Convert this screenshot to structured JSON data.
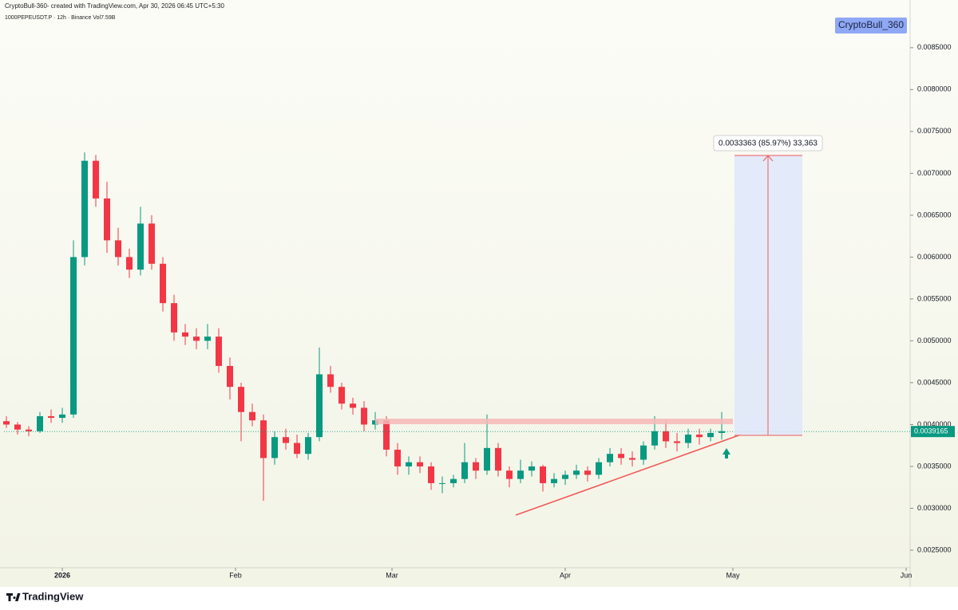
{
  "chart_data": {
    "type": "candlestick",
    "credit": "CryptoBull-360- created with TradingView.com, Apr 30, 2026 06:45 UTC+5:30",
    "title": "1000PEPEUSDT.P · 12h · Binance  Vol7.59B",
    "badge": "CryptoBull_360",
    "measure_label": "0.0033363 (85.97%) 33,363",
    "last_price": 0.0039165,
    "logo": "TradingView",
    "up_color": "#089981",
    "down_color": "#f23645",
    "x": [
      -10,
      -8,
      -6,
      -4,
      -2,
      0,
      2,
      4,
      6,
      8,
      10,
      12,
      14,
      16,
      18,
      20,
      22,
      24,
      26,
      28,
      30,
      32,
      34,
      36,
      38,
      40,
      42,
      44,
      46,
      48,
      50,
      52,
      54,
      56,
      58,
      60,
      62,
      64,
      66,
      68,
      70,
      72,
      74,
      76,
      78,
      80,
      82,
      84,
      86,
      88,
      90,
      92,
      94,
      96,
      98,
      100,
      102,
      104,
      106,
      108,
      110,
      112,
      114,
      116,
      118
    ],
    "open": [
      0.00404,
      0.004,
      0.00394,
      0.00392,
      0.0041,
      0.00408,
      0.00412,
      0.006,
      0.00715,
      0.0067,
      0.0062,
      0.006,
      0.00585,
      0.0064,
      0.00592,
      0.00545,
      0.0051,
      0.00505,
      0.005,
      0.00505,
      0.0047,
      0.00445,
      0.00415,
      0.00405,
      0.0036,
      0.00385,
      0.00378,
      0.00365,
      0.00385,
      0.0046,
      0.00445,
      0.00425,
      0.0042,
      0.004,
      0.00405,
      0.0037,
      0.0035,
      0.00355,
      0.0035,
      0.0033,
      0.0033,
      0.00335,
      0.00355,
      0.00345,
      0.00372,
      0.00345,
      0.00335,
      0.00345,
      0.0035,
      0.0033,
      0.00335,
      0.0034,
      0.00345,
      0.0034,
      0.00355,
      0.00365,
      0.0036,
      0.00358,
      0.00375,
      0.00392,
      0.0038,
      0.00378,
      0.00388,
      0.00385,
      0.0039
    ],
    "high": [
      0.0041,
      0.00403,
      0.00398,
      0.00415,
      0.00418,
      0.0042,
      0.0062,
      0.00725,
      0.00722,
      0.0069,
      0.00635,
      0.0061,
      0.0066,
      0.0065,
      0.006,
      0.00555,
      0.0052,
      0.00515,
      0.0052,
      0.00515,
      0.0048,
      0.0045,
      0.00425,
      0.00412,
      0.00392,
      0.00395,
      0.00388,
      0.0039,
      0.00492,
      0.0047,
      0.0045,
      0.00432,
      0.00428,
      0.00415,
      0.0041,
      0.00378,
      0.00362,
      0.00362,
      0.00355,
      0.00338,
      0.0034,
      0.00378,
      0.0036,
      0.00412,
      0.00378,
      0.0035,
      0.00358,
      0.00356,
      0.00352,
      0.00342,
      0.00345,
      0.00352,
      0.0035,
      0.0036,
      0.00372,
      0.00372,
      0.00368,
      0.0038,
      0.0041,
      0.00405,
      0.0039,
      0.00395,
      0.00395,
      0.00395,
      0.00415
    ],
    "low": [
      0.00396,
      0.00388,
      0.00386,
      0.0039,
      0.00402,
      0.00402,
      0.00408,
      0.0059,
      0.0066,
      0.00605,
      0.0059,
      0.00575,
      0.00578,
      0.00585,
      0.00535,
      0.005,
      0.00495,
      0.0049,
      0.0049,
      0.00462,
      0.0043,
      0.0038,
      0.00398,
      0.00309,
      0.00352,
      0.0037,
      0.0036,
      0.00358,
      0.0038,
      0.00438,
      0.00418,
      0.00412,
      0.00392,
      0.00394,
      0.00362,
      0.0034,
      0.0034,
      0.00342,
      0.00322,
      0.00318,
      0.00325,
      0.0033,
      0.00335,
      0.0034,
      0.00338,
      0.00325,
      0.0033,
      0.00338,
      0.0032,
      0.00325,
      0.00328,
      0.00335,
      0.00332,
      0.00335,
      0.0035,
      0.00352,
      0.0035,
      0.00352,
      0.0037,
      0.00372,
      0.00368,
      0.00372,
      0.00376,
      0.0038,
      0.00382
    ],
    "close": [
      0.004,
      0.00394,
      0.00392,
      0.0041,
      0.00408,
      0.00412,
      0.006,
      0.00715,
      0.0067,
      0.0062,
      0.006,
      0.00585,
      0.0064,
      0.00592,
      0.00545,
      0.0051,
      0.00505,
      0.005,
      0.00505,
      0.0047,
      0.00445,
      0.00415,
      0.00405,
      0.0036,
      0.00385,
      0.00378,
      0.00365,
      0.00385,
      0.0046,
      0.00445,
      0.00425,
      0.0042,
      0.004,
      0.00405,
      0.0037,
      0.0035,
      0.00355,
      0.0035,
      0.0033,
      0.0033,
      0.00335,
      0.00355,
      0.00345,
      0.00372,
      0.00345,
      0.00335,
      0.00345,
      0.0035,
      0.0033,
      0.00335,
      0.0034,
      0.00345,
      0.0034,
      0.00355,
      0.00365,
      0.0036,
      0.00358,
      0.00375,
      0.00392,
      0.0038,
      0.00378,
      0.00388,
      0.00385,
      0.0039,
      0.00392
    ],
    "xlim": [
      -10.43,
      151.71
    ],
    "xticks": [
      {
        "value": 0,
        "label": "2026"
      },
      {
        "value": 31,
        "label": "Feb"
      },
      {
        "value": 59,
        "label": "Mar"
      },
      {
        "value": 90,
        "label": "Apr"
      },
      {
        "value": 120,
        "label": "May"
      },
      {
        "value": 151,
        "label": "Jun"
      }
    ],
    "ylim": [
      0.00229,
      0.00907
    ],
    "yticks": [
      {
        "value": 0.0025,
        "label": "0.0025000"
      },
      {
        "value": 0.003,
        "label": "0.0030000"
      },
      {
        "value": 0.0035,
        "label": "0.0035000"
      },
      {
        "value": 0.004,
        "label": "0.0040000"
      },
      {
        "value": 0.0045,
        "label": "0.0045000"
      },
      {
        "value": 0.005,
        "label": "0.0050000"
      },
      {
        "value": 0.0055,
        "label": "0.0055000"
      },
      {
        "value": 0.006,
        "label": "0.0060000"
      },
      {
        "value": 0.0065,
        "label": "0.0065000"
      },
      {
        "value": 0.007,
        "label": "0.0070000"
      },
      {
        "value": 0.0075,
        "label": "0.0075000"
      },
      {
        "value": 0.008,
        "label": "0.0080000"
      },
      {
        "value": 0.0085,
        "label": "0.0085000"
      }
    ]
  }
}
